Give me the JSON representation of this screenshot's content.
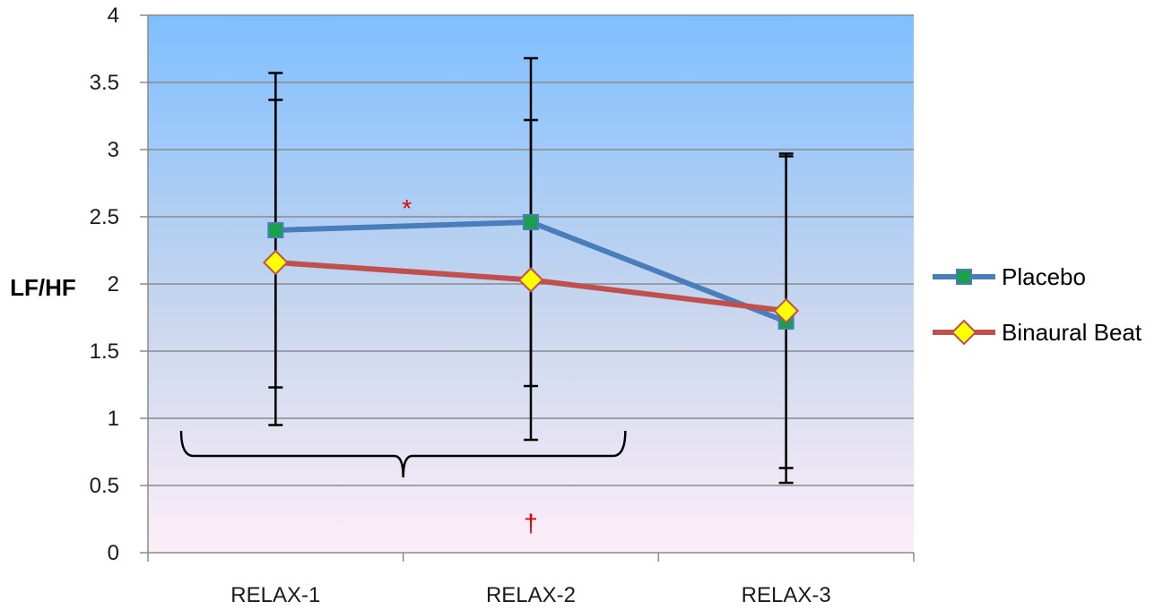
{
  "chart_data": {
    "type": "line",
    "title": "",
    "xlabel": "",
    "ylabel": "LF/HF",
    "ylim": [
      0,
      4
    ],
    "yticks": [
      "0",
      "0.5",
      "1",
      "1.5",
      "2",
      "2.5",
      "3",
      "3.5",
      "4"
    ],
    "ytick_values": [
      0,
      0.5,
      1,
      1.5,
      2,
      2.5,
      3,
      3.5,
      4
    ],
    "categories": [
      "RELAX-1",
      "RELAX-2",
      "RELAX-3"
    ],
    "grid": true,
    "legend_position": "right",
    "series": [
      {
        "name": "Placebo",
        "color": "#4a7ebb",
        "marker": "square",
        "marker_color": "#1aa04a",
        "values": [
          2.4,
          2.46,
          1.72
        ],
        "error_upper": [
          3.37,
          3.22,
          2.95
        ],
        "error_lower": [
          1.23,
          1.24,
          0.52
        ]
      },
      {
        "name": "Binaural Beat",
        "color": "#c0504d",
        "marker": "diamond",
        "marker_color": "#ffff00",
        "values": [
          2.16,
          2.03,
          1.8
        ],
        "error_upper": [
          3.57,
          3.68,
          2.97
        ],
        "error_lower": [
          0.95,
          0.84,
          0.63
        ]
      }
    ],
    "annotations": {
      "asterisk": {
        "text": "*",
        "x_between": [
          0,
          1
        ],
        "y": 2.62
      },
      "dagger": {
        "text": "†",
        "x": 1,
        "y": 0.25
      },
      "brace": {
        "from_x": 0.13,
        "to_x": 1.87,
        "y": 0.72
      }
    },
    "background_gradient": [
      "#7fbfff",
      "#c8d6ee",
      "#fdeef8"
    ]
  }
}
